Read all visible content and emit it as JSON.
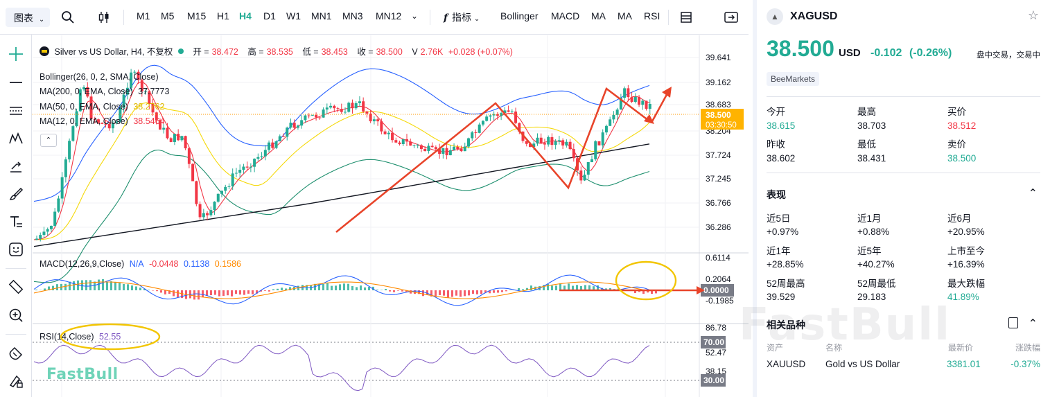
{
  "toolbar": {
    "chart_menu": "图表",
    "timeframes": [
      "M1",
      "M5",
      "M15",
      "H1",
      "H4",
      "D1",
      "W1",
      "MN1",
      "MN3",
      "MN12"
    ],
    "active_timeframe": "H4",
    "indicators_label": "指标",
    "indicator_shortcuts": [
      "Bollinger",
      "MACD",
      "MA",
      "MA",
      "RSI"
    ]
  },
  "chart": {
    "symbol_title": "Silver vs US Dollar, H4, 不复权",
    "ohlc": {
      "open_label": "开 =",
      "open": "38.472",
      "high_label": "高 =",
      "high": "38.535",
      "low_label": "低 =",
      "low": "38.453",
      "close_label": "收 =",
      "close": "38.500",
      "vol_label": "V",
      "volume": "2.76K",
      "change": "+0.028 (+0.07%)"
    },
    "indicators": [
      {
        "name": "Bollinger(26, 0, 2, SMA, Close)",
        "value": "",
        "color": "#2962ff"
      },
      {
        "name": "MA(200, 0, EMA, Close)",
        "value": "37.7773",
        "color": "#131722"
      },
      {
        "name": "MA(50, 0, EMA, Close)",
        "value": "38.2762",
        "color": "#f5d90a"
      },
      {
        "name": "MA(12, 0, EMA, Close)",
        "value": "38.5464",
        "color": "#f23645"
      }
    ],
    "price_axis": [
      "39.641",
      "39.162",
      "38.683",
      "38.204",
      "37.724",
      "37.245",
      "36.766",
      "36.286"
    ],
    "current_price_tag": "38.500",
    "countdown": "03:30:50",
    "macd": {
      "name": "MACD(12,26,9,Close)",
      "na": "N/A",
      "v1": "-0.0448",
      "v2": "0.1138",
      "v3": "0.1586"
    },
    "macd_axis": [
      "0.6114",
      "0.2064",
      "0.0000",
      "-0.1985"
    ],
    "rsi": {
      "name": "RSI(14,Close)",
      "value": "52.55"
    },
    "rsi_axis": [
      "86.78",
      "70.00",
      "52.47",
      "38.15",
      "30.00"
    ],
    "logo_text": "FastBull",
    "colors": {
      "up": "#22ab94",
      "down": "#f23645",
      "accent": "#22ab94",
      "annotation": "#e8442a",
      "highlight_circle": "#f2c500"
    }
  },
  "panel": {
    "symbol": "XAGUSD",
    "price": "38.500",
    "currency": "USD",
    "change": "-0.102",
    "change_pct": "(-0.26%)",
    "status": "盘中交易，交易中",
    "broker": "BeeMarkets",
    "stats": [
      {
        "label": "今开",
        "value": "38.615",
        "tone": "green"
      },
      {
        "label": "最高",
        "value": "38.703",
        "tone": "plain"
      },
      {
        "label": "买价",
        "value": "38.512",
        "tone": "red"
      },
      {
        "label": "昨收",
        "value": "38.602",
        "tone": "plain"
      },
      {
        "label": "最低",
        "value": "38.431",
        "tone": "plain"
      },
      {
        "label": "卖价",
        "value": "38.500",
        "tone": "green"
      }
    ],
    "performance_title": "表现",
    "performance": [
      {
        "label": "近5日",
        "value": "+0.97%"
      },
      {
        "label": "近1月",
        "value": "+0.88%"
      },
      {
        "label": "近6月",
        "value": "+20.95%"
      },
      {
        "label": "近1年",
        "value": "+28.85%"
      },
      {
        "label": "近5年",
        "value": "+40.27%"
      },
      {
        "label": "上市至今",
        "value": "+16.39%"
      },
      {
        "label": "52周最高",
        "value": "39.529"
      },
      {
        "label": "52周最低",
        "value": "29.183"
      },
      {
        "label": "最大跌幅",
        "value": "41.89%"
      }
    ],
    "related_title": "相关品种",
    "related_headers": [
      "资产",
      "名称",
      "最新价",
      "涨跌幅"
    ],
    "related_rows": [
      {
        "asset": "XAUUSD",
        "name": "Gold vs US Dollar",
        "price": "3381.01",
        "change": "-0.37%"
      }
    ],
    "watermark": "FastBull"
  }
}
